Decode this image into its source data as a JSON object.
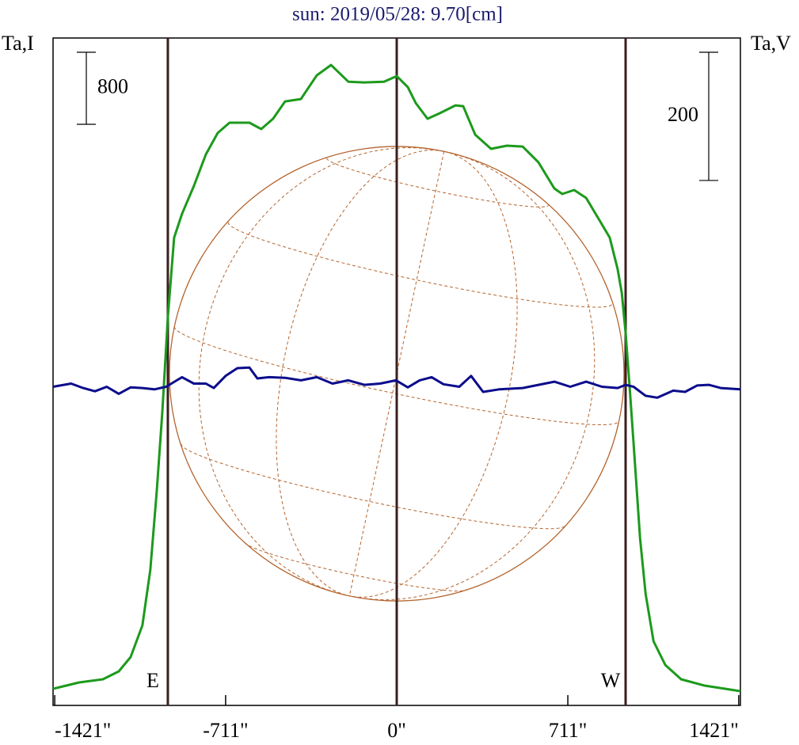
{
  "chart_data": {
    "type": "line",
    "title": "sun: 2019/05/28: 9.70[cm]",
    "ylabel": "Ta,I",
    "y2label": "Ta,V",
    "xlim": [
      -1428,
      1428
    ],
    "xticks": [
      {
        "value": -1421,
        "label": "-1421\""
      },
      {
        "value": -711,
        "label": "-711\""
      },
      {
        "value": 0,
        "label": "0\""
      },
      {
        "value": 711,
        "label": "711\""
      },
      {
        "value": 1421,
        "label": "1421\""
      }
    ],
    "ylim": [
      0,
      7411
    ],
    "y2lim": [
      -495,
      546
    ],
    "y_scale_bar": 800,
    "y2_scale_bar": 200,
    "limbs": [
      {
        "x": -951,
        "label": "E"
      },
      {
        "x": 0
      },
      {
        "x": 951,
        "label": "W"
      }
    ],
    "series": [
      {
        "color": "#1c9a1c",
        "x": [
          -1428,
          -1320,
          -1221,
          -1155,
          -1106,
          -1057,
          -1024,
          -997,
          -974,
          -951,
          -925,
          -892,
          -843,
          -793,
          -744,
          -695,
          -612,
          -563,
          -514,
          -464,
          -398,
          -332,
          -273,
          -201,
          -135,
          -53,
          0,
          46,
          79,
          128,
          178,
          244,
          276,
          326,
          392,
          458,
          523,
          589,
          655,
          688,
          737,
          787,
          836,
          885,
          918,
          935,
          951,
          968,
          984,
          1011,
          1034,
          1067,
          1116,
          1182,
          1280,
          1428
        ],
        "values": [
          185,
          255,
          290,
          378,
          536,
          888,
          1503,
          2382,
          3261,
          4316,
          5195,
          5459,
          5767,
          6119,
          6356,
          6470,
          6470,
          6400,
          6514,
          6707,
          6733,
          6997,
          7111,
          6926,
          6918,
          6926,
          6988,
          6865,
          6689,
          6514,
          6575,
          6663,
          6654,
          6338,
          6180,
          6215,
          6206,
          6030,
          5740,
          5679,
          5723,
          5635,
          5415,
          5195,
          4843,
          4580,
          4140,
          3525,
          2909,
          1855,
          1239,
          712,
          448,
          290,
          220,
          158
        ]
      },
      {
        "color": "#0c0c8c",
        "axis": "y2",
        "x": [
          -1428,
          -1353,
          -1303,
          -1254,
          -1205,
          -1155,
          -1106,
          -1057,
          -1007,
          -958,
          -892,
          -843,
          -793,
          -760,
          -711,
          -662,
          -612,
          -579,
          -530,
          -464,
          -398,
          -332,
          -267,
          -201,
          -135,
          -69,
          -3,
          46,
          95,
          145,
          194,
          260,
          309,
          359,
          425,
          523,
          589,
          655,
          721,
          787,
          853,
          918,
          951,
          984,
          1034,
          1083,
          1149,
          1198,
          1248,
          1297,
          1346,
          1428
        ],
        "values": [
          2,
          7,
          0,
          -5,
          2,
          -9,
          1,
          0,
          -2,
          2,
          17,
          7,
          7,
          0,
          19,
          31,
          32,
          15,
          17,
          16,
          12,
          17,
          7,
          12,
          5,
          7,
          12,
          1,
          12,
          17,
          6,
          2,
          19,
          -6,
          -2,
          0,
          5,
          10,
          2,
          10,
          2,
          0,
          5,
          2,
          -12,
          -15,
          -4,
          -6,
          4,
          5,
          0,
          -2
        ]
      }
    ]
  }
}
